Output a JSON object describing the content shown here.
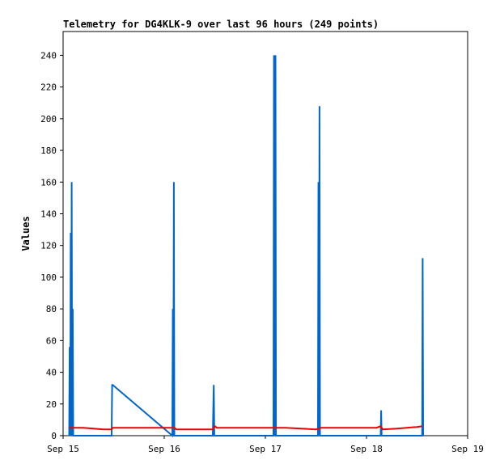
{
  "chart_data": {
    "type": "line",
    "title": "Telemetry for DG4KLK-9 over last 96 hours (249 points)",
    "xlabel": "",
    "ylabel": "Values",
    "xlim": [
      15.0,
      19.0
    ],
    "ylim": [
      0,
      255
    ],
    "x_ticks": [
      {
        "label": "Sep 15",
        "value": 15.0
      },
      {
        "label": "Sep 16",
        "value": 16.0
      },
      {
        "label": "Sep 17",
        "value": 17.0
      },
      {
        "label": "Sep 18",
        "value": 18.0
      },
      {
        "label": "Sep 19",
        "value": 19.0
      }
    ],
    "y_ticks": [
      0,
      20,
      40,
      60,
      80,
      100,
      120,
      140,
      160,
      180,
      200,
      220,
      240
    ],
    "grid": false,
    "series": [
      {
        "color": "#0066cc",
        "x": [
          15.06,
          15.065,
          15.07,
          15.075,
          15.08,
          15.085,
          15.09,
          15.095,
          15.1,
          15.48,
          15.485,
          15.49,
          15.49,
          16.08,
          16.085,
          16.09,
          16.095,
          16.1,
          16.105,
          16.48,
          16.49,
          16.495,
          17.08,
          17.085,
          17.09,
          17.1,
          17.105,
          17.11,
          17.52,
          17.525,
          17.53,
          17.535,
          17.54,
          18.14,
          18.145,
          18.15,
          18.55,
          18.555,
          18.56
        ],
        "y": [
          0,
          56,
          0,
          128,
          0,
          160,
          0,
          80,
          0,
          0,
          32,
          32,
          32,
          0,
          80,
          0,
          160,
          0,
          0,
          0,
          32,
          0,
          0,
          240,
          0,
          240,
          0,
          0,
          0,
          160,
          0,
          208,
          0,
          0,
          16,
          0,
          0,
          112,
          0
        ]
      },
      {
        "color": "#ee0000",
        "x": [
          15.06,
          15.07,
          15.2,
          15.4,
          15.48,
          15.49,
          15.8,
          16.1,
          16.12,
          16.2,
          16.48,
          16.5,
          16.52,
          16.7,
          17.0,
          17.2,
          17.5,
          17.55,
          17.8,
          18.1,
          18.14,
          18.16,
          18.3,
          18.5,
          18.55
        ],
        "y": [
          5,
          5,
          5,
          4,
          4,
          5,
          5,
          5,
          4,
          4,
          4,
          6,
          5,
          5,
          5,
          5,
          4,
          5,
          5,
          5,
          6,
          4,
          4.5,
          5.5,
          6
        ]
      }
    ]
  }
}
